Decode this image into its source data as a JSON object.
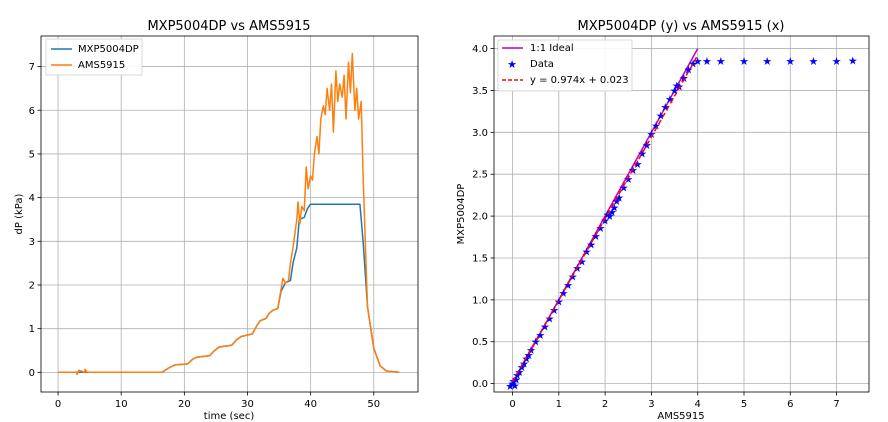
{
  "chart_data": [
    {
      "type": "line",
      "title": "MXP5004DP vs AMS5915",
      "xlabel": "time (sec)",
      "ylabel": "dP (kPa)",
      "xlim": [
        -2.7,
        57
      ],
      "ylim": [
        -0.45,
        7.7
      ],
      "xticks": [
        0,
        10,
        20,
        30,
        40,
        50
      ],
      "yticks": [
        0,
        1,
        2,
        3,
        4,
        5,
        6,
        7
      ],
      "grid": true,
      "legend": "top-left",
      "series": [
        {
          "name": "MXP5004DP",
          "color": "#1f77b4",
          "x": [
            0,
            3,
            16.5,
            17.5,
            18.5,
            20.5,
            21.3,
            22,
            24,
            24.8,
            25.5,
            27.5,
            28.3,
            29,
            30.8,
            31.4,
            32,
            33,
            33.4,
            34,
            34.8,
            35.3,
            36,
            36.8,
            37.2,
            37.8,
            38.2,
            39,
            39.5,
            40,
            46,
            47.8,
            48.3,
            49,
            50,
            51,
            52,
            54
          ],
          "y": [
            0,
            0,
            0,
            0.1,
            0.17,
            0.19,
            0.3,
            0.35,
            0.38,
            0.5,
            0.58,
            0.62,
            0.75,
            0.82,
            0.88,
            1.05,
            1.18,
            1.24,
            1.35,
            1.42,
            1.46,
            1.85,
            2.05,
            2.1,
            2.5,
            2.85,
            3.5,
            3.55,
            3.75,
            3.85,
            3.85,
            3.85,
            3.0,
            1.5,
            0.55,
            0.15,
            0.03,
            0
          ]
        },
        {
          "name": "AMS5915",
          "color": "#ff7f0e",
          "x": [
            0,
            2.9,
            3.0,
            3.3,
            4.2,
            4.3,
            4.6,
            16.5,
            17.5,
            18.5,
            20.5,
            21.3,
            22,
            24,
            24.8,
            25.5,
            27.5,
            28.3,
            29,
            30.8,
            31.4,
            32,
            33,
            33.4,
            34,
            34.8,
            35.3,
            35.6,
            36,
            36.5,
            36.8,
            37.2,
            37.8,
            38,
            38.3,
            38.6,
            39,
            39.3,
            39.6,
            40,
            40.3,
            40.6,
            41,
            41.3,
            41.6,
            42,
            42.3,
            42.6,
            43,
            43.3,
            43.6,
            44,
            44.3,
            44.6,
            45,
            45.3,
            45.6,
            46,
            46.3,
            46.6,
            47,
            47.3,
            47.6,
            48,
            48.3,
            49,
            50,
            51,
            52,
            54
          ],
          "y": [
            0,
            0,
            -0.05,
            0.05,
            0,
            0.07,
            0,
            0,
            0.1,
            0.17,
            0.19,
            0.3,
            0.35,
            0.38,
            0.5,
            0.58,
            0.62,
            0.75,
            0.82,
            0.88,
            1.05,
            1.18,
            1.24,
            1.35,
            1.42,
            1.46,
            1.9,
            2.15,
            2.05,
            2.1,
            2.5,
            2.85,
            3.5,
            3.9,
            3.4,
            3.8,
            3.7,
            4.7,
            4.2,
            4.5,
            4.4,
            5.0,
            5.4,
            5.0,
            5.8,
            6.1,
            5.9,
            6.5,
            6.0,
            6.6,
            5.5,
            6.9,
            6.2,
            6.6,
            6.3,
            6.8,
            5.8,
            7.1,
            6.4,
            7.3,
            6.0,
            6.5,
            5.8,
            6.2,
            4.5,
            1.5,
            0.55,
            0.15,
            0.03,
            0
          ]
        }
      ]
    },
    {
      "type": "scatter",
      "title": "MXP5004DP (y) vs AMS5915 (x)",
      "xlabel": "AMS5915",
      "ylabel": "MXP5004DP",
      "xlim": [
        -0.4,
        7.7
      ],
      "ylim": [
        -0.1,
        4.15
      ],
      "xticks": [
        0,
        1,
        2,
        3,
        4,
        5,
        6,
        7
      ],
      "yticks": [
        0.0,
        0.5,
        1.0,
        1.5,
        2.0,
        2.5,
        3.0,
        3.5,
        4.0
      ],
      "ytick_labels": [
        "0.0",
        "0.5",
        "1.0",
        "1.5",
        "2.0",
        "2.5",
        "3.0",
        "3.5",
        "4.0"
      ],
      "grid": true,
      "legend": "top-left",
      "series": [
        {
          "name": "1:1 Ideal",
          "kind": "line",
          "color": "#bf00bf",
          "x": [
            0,
            4
          ],
          "y": [
            0,
            4
          ]
        },
        {
          "name": "Data",
          "kind": "marker",
          "marker": "star",
          "color": "#0000ff",
          "x": [
            -0.05,
            0.0,
            0.02,
            0.05,
            0.08,
            0.1,
            0.15,
            0.2,
            0.25,
            0.3,
            0.35,
            0.4,
            0.5,
            0.6,
            0.7,
            0.8,
            0.9,
            1.0,
            1.1,
            1.2,
            1.3,
            1.4,
            1.5,
            1.6,
            1.7,
            1.8,
            1.9,
            2.0,
            2.05,
            2.1,
            2.15,
            2.2,
            2.25,
            2.3,
            2.4,
            2.5,
            2.6,
            2.7,
            2.8,
            2.9,
            3.0,
            3.1,
            3.2,
            3.3,
            3.4,
            3.5,
            3.55,
            3.6,
            3.7,
            3.8,
            3.9,
            4.0,
            4.2,
            4.5,
            5.0,
            5.5,
            6.0,
            6.5,
            7.0,
            7.35
          ],
          "y": [
            -0.03,
            0.0,
            0.03,
            -0.02,
            0.05,
            0.1,
            0.14,
            0.2,
            0.24,
            0.3,
            0.34,
            0.4,
            0.5,
            0.58,
            0.68,
            0.78,
            0.88,
            0.98,
            1.08,
            1.18,
            1.28,
            1.38,
            1.46,
            1.58,
            1.66,
            1.76,
            1.86,
            1.95,
            2.02,
            2.0,
            2.05,
            2.1,
            2.18,
            2.22,
            2.34,
            2.44,
            2.55,
            2.62,
            2.75,
            2.85,
            2.98,
            3.08,
            3.2,
            3.3,
            3.4,
            3.5,
            3.56,
            3.55,
            3.65,
            3.75,
            3.82,
            3.85,
            3.85,
            3.85,
            3.85,
            3.85,
            3.85,
            3.85,
            3.85,
            3.86
          ]
        },
        {
          "name": "y = 0.974x + 0.023",
          "kind": "dashed",
          "color": "#ff0000",
          "slope": 0.974,
          "intercept": 0.023,
          "x": [
            0,
            4
          ]
        }
      ]
    }
  ]
}
